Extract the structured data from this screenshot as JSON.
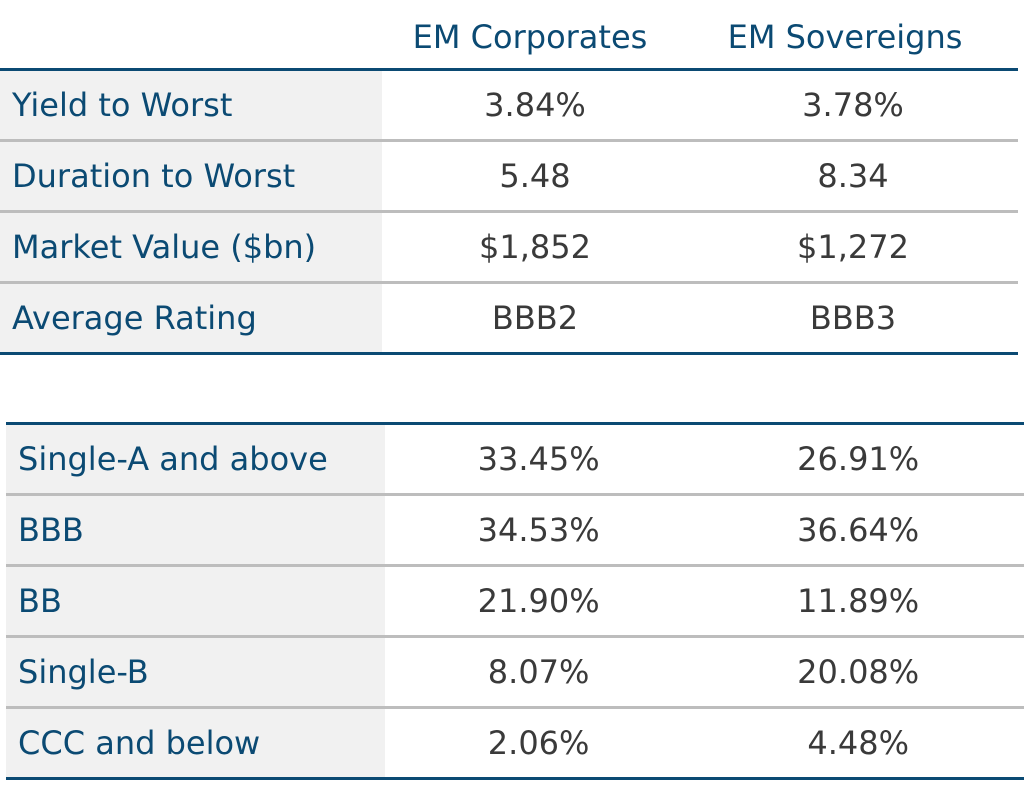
{
  "header": {
    "col1": "EM Corporates",
    "col2": "EM Sovereigns"
  },
  "summary_rows": [
    {
      "label": "Yield to Worst",
      "corporates": "3.84%",
      "sovereigns": "3.78%"
    },
    {
      "label": "Duration to Worst",
      "corporates": "5.48",
      "sovereigns": "8.34"
    },
    {
      "label": "Market Value ($bn)",
      "corporates": "$1,852",
      "sovereigns": "$1,272"
    },
    {
      "label": "Average Rating",
      "corporates": "BBB2",
      "sovereigns": "BBB3"
    }
  ],
  "rating_rows": [
    {
      "label": "Single-A and above",
      "corporates": "33.45%",
      "sovereigns": "26.91%"
    },
    {
      "label": "BBB",
      "corporates": "34.53%",
      "sovereigns": "36.64%"
    },
    {
      "label": "BB",
      "corporates": "21.90%",
      "sovereigns": "11.89%"
    },
    {
      "label": "Single-B",
      "corporates": "8.07%",
      "sovereigns": "20.08%"
    },
    {
      "label": "CCC and below",
      "corporates": "2.06%",
      "sovereigns": "4.48%"
    }
  ],
  "colors": {
    "accent": "#0b4a73",
    "label_bg": "#f1f1f1",
    "value_text": "#3a3a3a",
    "row_divider": "#bdbdbd"
  }
}
